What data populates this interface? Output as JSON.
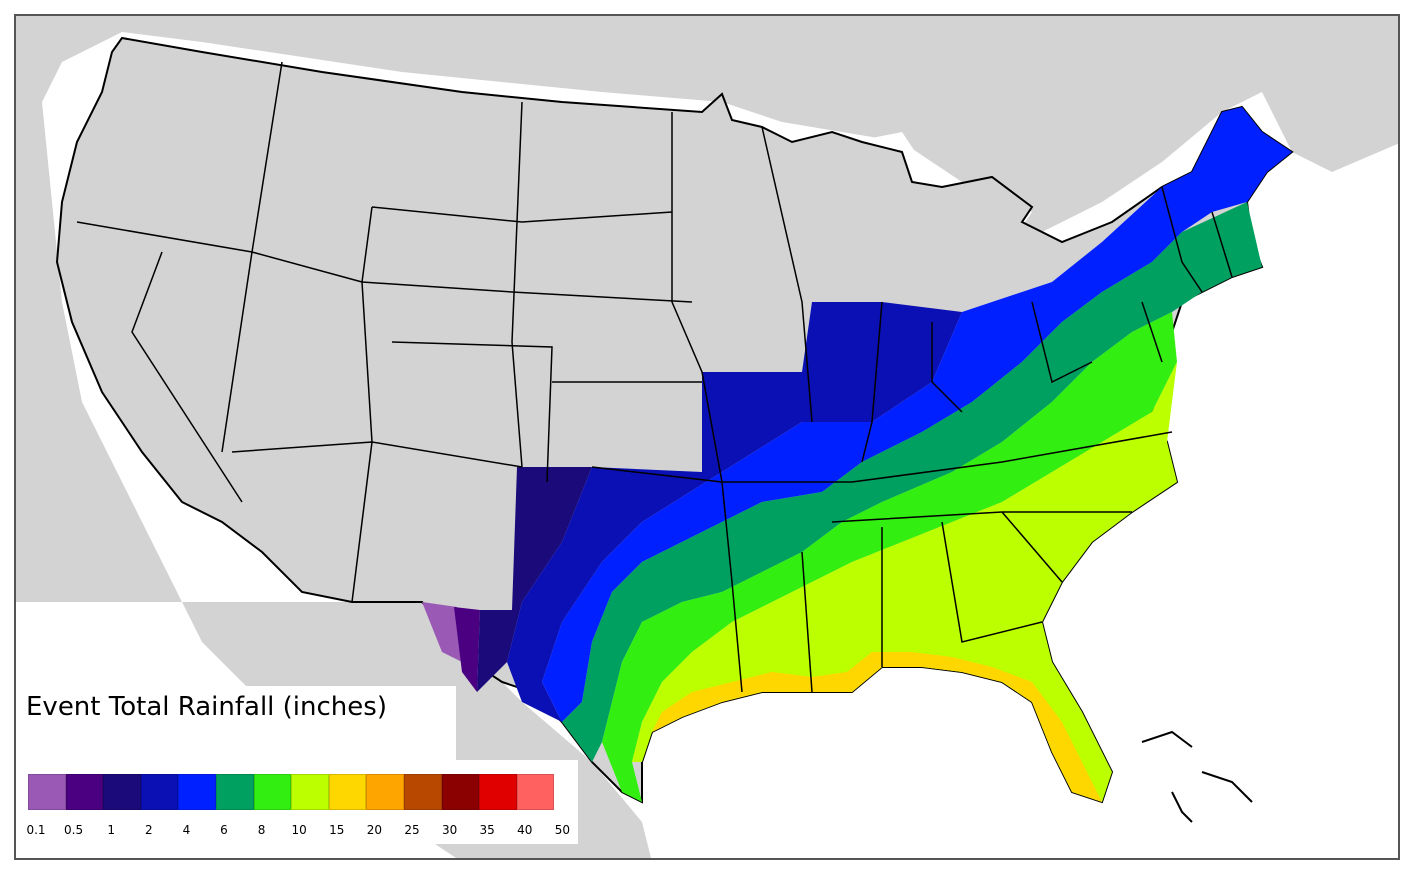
{
  "legend": {
    "title": "Event Total Rainfall (inches)",
    "colors": [
      "#9b59b6",
      "#4b0082",
      "#1a0a7a",
      "#0a10b4",
      "#0020ff",
      "#00a060",
      "#33ee11",
      "#bbff00",
      "#ffd700",
      "#ffa500",
      "#b84800",
      "#8b0000",
      "#e00000",
      "#ff6060"
    ],
    "ticks": [
      "0.1",
      "0.5",
      "1",
      "2",
      "4",
      "6",
      "8",
      "10",
      "15",
      "20",
      "25",
      "30",
      "35",
      "40",
      "50"
    ]
  },
  "map": {
    "land_color": "#d3d3d3",
    "water_color": "#ffffff",
    "border_color": "#000000"
  }
}
